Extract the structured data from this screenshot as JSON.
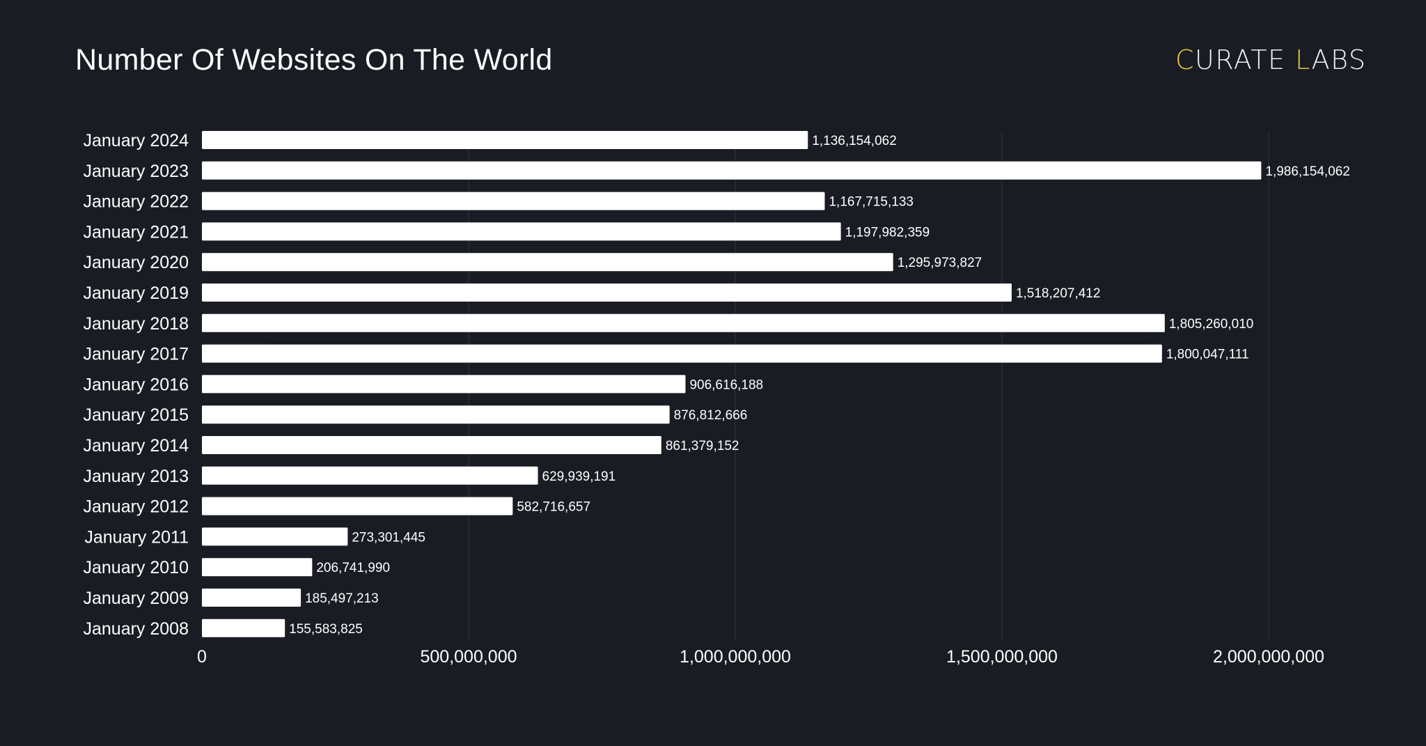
{
  "chart_data": {
    "type": "bar",
    "orientation": "horizontal",
    "title": "Number Of Websites On The World",
    "categories": [
      "January 2024",
      "January 2023",
      "January 2022",
      "January 2021",
      "January 2020",
      "January 2019",
      "January 2018",
      "January 2017",
      "January 2016",
      "January 2015",
      "January 2014",
      "January 2013",
      "January 2012",
      "January 2011",
      "January 2010",
      "January 2009",
      "January 2008"
    ],
    "values": [
      1136154062,
      1986154062,
      1167715133,
      1197982359,
      1295973827,
      1518207412,
      1805260010,
      1800047111,
      906616188,
      876812666,
      861379152,
      629939191,
      582716657,
      273301445,
      206741990,
      185497213,
      155583825
    ],
    "data_labels": [
      "1,136,154,062",
      "1,986,154,062",
      "1,167,715,133",
      "1,197,982,359",
      "1,295,973,827",
      "1,518,207,412",
      "1,805,260,010",
      "1,800,047,111",
      "906,616,188",
      "876,812,666",
      "861,379,152",
      "629,939,191",
      "582,716,657",
      "273,301,445",
      "206,741,990",
      "185,497,213",
      "155,583,825"
    ],
    "xlim": [
      0,
      2000000000
    ],
    "xticks": [
      0,
      500000000,
      1000000000,
      1500000000,
      2000000000
    ],
    "xtick_labels": [
      "0",
      "500,000,000",
      "1,000,000,000",
      "1,500,000,000",
      "2,000,000,000"
    ],
    "xlabel": "",
    "ylabel": "",
    "grid": "vertical",
    "legend": "none",
    "colors": {
      "background": "#1a1c24",
      "bar": "#ffffff",
      "grid": "#2c2f38",
      "text": "#ffffff"
    }
  },
  "logo": {
    "parts": [
      {
        "text": "C",
        "accent": true
      },
      {
        "text": "URATE ",
        "accent": false
      },
      {
        "text": "L",
        "accent": true
      },
      {
        "text": "ABS",
        "accent": false
      }
    ],
    "accent_color": "#e8c93a"
  }
}
